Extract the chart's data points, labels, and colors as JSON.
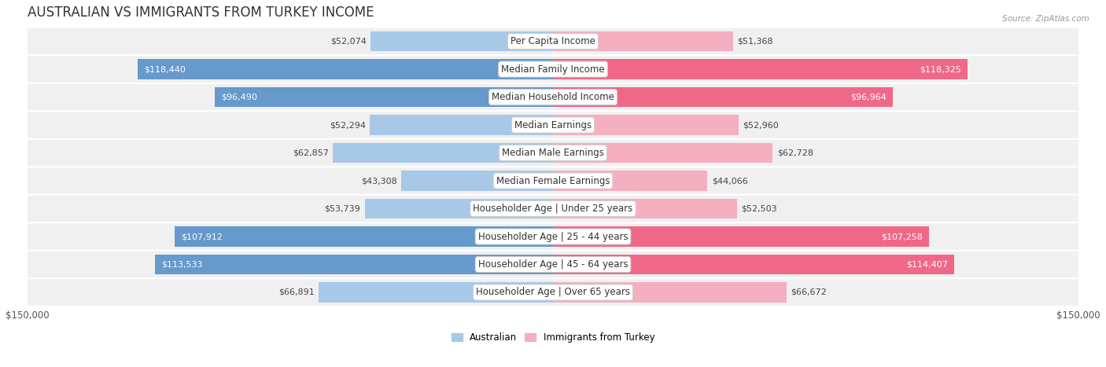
{
  "title": "AUSTRALIAN VS IMMIGRANTS FROM TURKEY INCOME",
  "source": "Source: ZipAtlas.com",
  "categories": [
    "Per Capita Income",
    "Median Family Income",
    "Median Household Income",
    "Median Earnings",
    "Median Male Earnings",
    "Median Female Earnings",
    "Householder Age | Under 25 years",
    "Householder Age | 25 - 44 years",
    "Householder Age | 45 - 64 years",
    "Householder Age | Over 65 years"
  ],
  "australian_values": [
    52074,
    118440,
    96490,
    52294,
    62857,
    43308,
    53739,
    107912,
    113533,
    66891
  ],
  "turkey_values": [
    51368,
    118325,
    96964,
    52960,
    62728,
    44066,
    52503,
    107258,
    114407,
    66672
  ],
  "australian_labels": [
    "$52,074",
    "$118,440",
    "$96,490",
    "$52,294",
    "$62,857",
    "$43,308",
    "$53,739",
    "$107,912",
    "$113,533",
    "$66,891"
  ],
  "turkey_labels": [
    "$51,368",
    "$118,325",
    "$96,964",
    "$52,960",
    "$62,728",
    "$44,066",
    "$52,503",
    "$107,258",
    "$114,407",
    "$66,672"
  ],
  "australian_color_light": "#a8c8e8",
  "australian_color_strong": "#6699cc",
  "turkey_color_light": "#f4b0c0",
  "turkey_color_strong": "#f06888",
  "row_bg": "#f0f0f0",
  "max_value": 150000,
  "legend_australian": "Australian",
  "legend_turkey": "Immigrants from Turkey",
  "xlabel_left": "$150,000",
  "xlabel_right": "$150,000",
  "title_fontsize": 12,
  "label_fontsize": 8.5,
  "category_fontsize": 8.5,
  "value_fontsize": 8.0,
  "strong_threshold": 80000
}
